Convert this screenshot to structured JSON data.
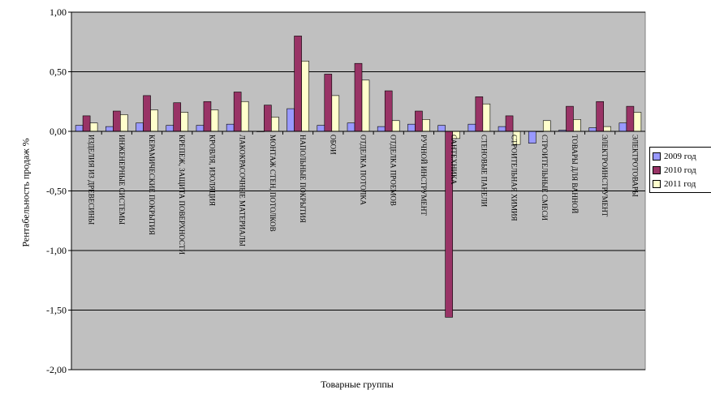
{
  "chart_data": {
    "type": "bar",
    "title": "",
    "xlabel": "Товарные группы",
    "ylabel": "Рентабельность продаж %",
    "ylim": [
      -2,
      1
    ],
    "yticks": [
      "1,00",
      "0,50",
      "0,00",
      "-0,50",
      "-1,00",
      "-1,50",
      "-2,00"
    ],
    "ytick_values": [
      1,
      0.5,
      0,
      -0.5,
      -1,
      -1.5,
      -2
    ],
    "grid": true,
    "legend_position": "right",
    "categories": [
      "Изделия из древесины",
      "Инженерные системы",
      "Керамические покрытия",
      "Крепеж, защита поверхности",
      "Кровля, изоляция",
      "Лакокрасочные материалы",
      "Монтаж стен, потолков",
      "Напольные покрытия",
      "Обои",
      "Отделка потолка",
      "Отделка проемов",
      "Ручной инструмент",
      "Сантехника",
      "Стеновые панели",
      "Строительная химия",
      "Строительные смеси",
      "Товары для ванной",
      "Электроинструмент",
      "Электротовары"
    ],
    "series": [
      {
        "name": "2009 год",
        "color": "#9999FF",
        "values": [
          0.05,
          0.04,
          0.07,
          0.05,
          0.05,
          0.06,
          0.0,
          0.19,
          0.05,
          0.07,
          0.04,
          0.06,
          0.05,
          0.06,
          0.04,
          -0.1,
          0.01,
          0.03,
          0.07
        ]
      },
      {
        "name": "2010 год",
        "color": "#993366",
        "values": [
          0.13,
          0.17,
          0.3,
          0.24,
          0.25,
          0.33,
          0.22,
          0.8,
          0.48,
          0.57,
          0.34,
          0.17,
          -1.56,
          0.29,
          0.13,
          0.0,
          0.21,
          0.25,
          0.21
        ]
      },
      {
        "name": "2011 год",
        "color": "#FFFFCC",
        "values": [
          0.07,
          0.14,
          0.18,
          0.16,
          0.18,
          0.25,
          0.12,
          0.59,
          0.3,
          0.43,
          0.09,
          0.1,
          -0.06,
          0.23,
          -0.11,
          0.09,
          0.1,
          0.04,
          0.16
        ]
      }
    ]
  }
}
